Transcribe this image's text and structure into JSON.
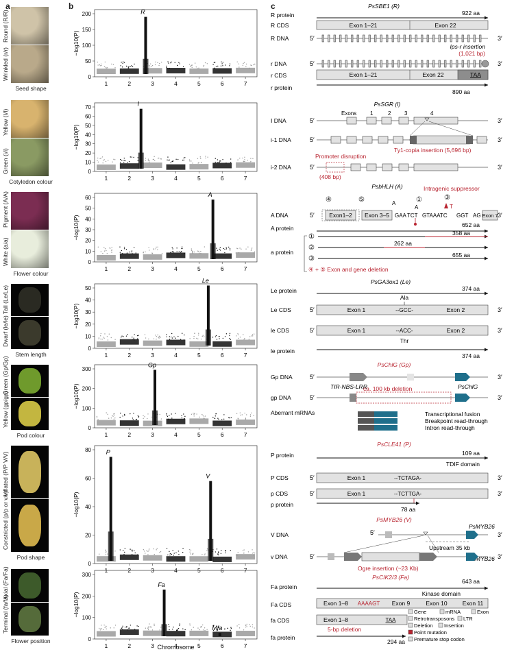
{
  "panels": {
    "a": "a",
    "b": "b",
    "c": "c"
  },
  "traits": [
    {
      "trait": "Seed shape",
      "top_label": "Round (R/R)",
      "bottom_label": "Wrinkled (r/r)",
      "colors": [
        "#cfc3a8",
        "#b9a98a"
      ]
    },
    {
      "trait": "Cotyledon colour",
      "top_label": "Yellow (I/I)",
      "bottom_label": "Green (i/i)",
      "colors": [
        "#d8b36e",
        "#8a9a63"
      ]
    },
    {
      "trait": "Flower colour",
      "top_label": "Pigment (A/A)",
      "bottom_label": "White (a/a)",
      "colors": [
        "#7b2d52",
        "#e8eddc"
      ]
    },
    {
      "trait": "Stem length",
      "top_label": "Tall (Le/Le)",
      "bottom_label": "Dwarf (le/le)",
      "colors": [
        "#2a2a22",
        "#3b3a2c"
      ]
    },
    {
      "trait": "Pod colour",
      "top_label": "Green (Gp/Gp)",
      "bottom_label": "Yellow (gp/gp)",
      "colors": [
        "#6f9a2c",
        "#c3b640"
      ]
    },
    {
      "trait": "Pod shape",
      "top_label": "Inflated (P/P V/V)",
      "bottom_label": "Constricted (p/p or v/v)",
      "colors": [
        "#c8b25a",
        "#c9a848"
      ]
    },
    {
      "trait": "Flower position",
      "top_label": "Axial (Fa/Fa)",
      "bottom_label": "Terminal (fa/fa)",
      "colors": [
        "#3d5a2a",
        "#556b3a"
      ]
    }
  ],
  "manhattan": {
    "ylabel": "−log10(P)",
    "xlabel": "Chromosome",
    "chromosomes": [
      "1",
      "2",
      "3",
      "4",
      "5",
      "6",
      "7"
    ],
    "plots": [
      {
        "ymax": 200,
        "yticks": [
          "0",
          "50",
          "100",
          "150",
          "200"
        ],
        "peaks": [
          {
            "label": "R",
            "chr": 2.7,
            "value": 190
          }
        ]
      },
      {
        "ymax": 70,
        "yticks": [
          "0",
          "10",
          "20",
          "30",
          "40",
          "50",
          "60",
          "70"
        ],
        "peaks": [
          {
            "label": "I",
            "chr": 2.5,
            "value": 68
          }
        ]
      },
      {
        "ymax": 60,
        "yticks": [
          "0",
          "10",
          "20",
          "30",
          "40",
          "50",
          "60"
        ],
        "peaks": [
          {
            "label": "A",
            "chr": 5.6,
            "value": 58
          }
        ]
      },
      {
        "ymax": 50,
        "yticks": [
          "0",
          "10",
          "20",
          "30",
          "40",
          "50"
        ],
        "peaks": [
          {
            "label": "Le",
            "chr": 5.4,
            "value": 52
          }
        ]
      },
      {
        "ymax": 300,
        "yticks": [
          "0",
          "100",
          "200",
          "300"
        ],
        "peaks": [
          {
            "label": "Gp",
            "chr": 3.1,
            "value": 295
          }
        ]
      },
      {
        "ymax": 80,
        "yticks": [
          "0",
          "20",
          "40",
          "60",
          "80"
        ],
        "peaks": [
          {
            "label": "P",
            "chr": 1.2,
            "value": 75
          },
          {
            "label": "V",
            "chr": 5.5,
            "value": 58
          }
        ]
      },
      {
        "ymax": 300,
        "yticks": [
          "0",
          "100",
          "200",
          "300"
        ],
        "peaks": [
          {
            "label": "Fa",
            "chr": 3.5,
            "value": 230
          },
          {
            "label": "Mfa",
            "chr": 5.9,
            "value": 28
          }
        ]
      }
    ]
  },
  "genes": {
    "r": {
      "title": "PsSBE1 (R)",
      "protein_aa": "922 aa",
      "rows": [
        "R protein",
        "R CDS",
        "R DNA",
        "r DNA",
        "r CDS",
        "r protein"
      ],
      "exon_a": "Exon 1–21",
      "exon_b": "Exon 22",
      "insertion": "Ips-r insertion",
      "insertion_bp": "(1,021 bp)",
      "stop": "TAA",
      "r_protein_aa": "890 aa"
    },
    "i": {
      "title": "PsSGR (I)",
      "rows": [
        "I DNA",
        "i-1 DNA",
        "i-2 DNA"
      ],
      "exons_label": "Exons",
      "exon_nums": [
        "1",
        "2",
        "3",
        "4"
      ],
      "ty1": "Ty1-copia insertion (5,696 bp)",
      "promoter": "Promoter disruption",
      "promoter_bp": "(408 bp)"
    },
    "a": {
      "title": "PsbHLH (A)",
      "suppressor": "Intragenic suppressor",
      "rows": [
        "A DNA",
        "A protein",
        "a protein"
      ],
      "exon_a": "Exon1–2",
      "exon_b": "Exon 3–5",
      "exon_c": "Exon 7",
      "seq1": "GAA",
      "seq2": "TCT",
      "seq3": "GTAAATC",
      "seq4": "GGT",
      "seq5": "AG",
      "snp": "T",
      "protein_aa": "652 aa",
      "a1_aa": "358 aa",
      "a2_aa": "262 aa",
      "a3_aa": "655 aa",
      "deletion": "④ + ⑤ Exon and gene deletion",
      "circles": [
        "①",
        "②",
        "③",
        "④",
        "⑤"
      ],
      "snpA": "A"
    },
    "le": {
      "title": "PsGA3ox1 (Le)",
      "rows": [
        "Le protein",
        "Le CDS",
        "le CDS",
        "le protein"
      ],
      "protein_aa": "374 aa",
      "ala": "Ala",
      "thr": "Thr",
      "exon_a": "Exon 1",
      "exon_b": "Exon 2",
      "codon_le": "--GCC-",
      "codon_lele": "--ACC-",
      "le_protein_aa": "374 aa"
    },
    "gp": {
      "title": "PsChlG (Gp)",
      "rows": [
        "Gp DNA",
        "gp DNA",
        "Aberrant mRNAs"
      ],
      "tir": "TIR-NBS-LRR",
      "chlg": "PsChlG",
      "deletion": "ca. 100 kb deletion",
      "m1": "Transcriptional fusion",
      "m2": "Breakpoint read-through",
      "m3": "Intron read-through"
    },
    "p": {
      "title": "PsCLE41 (P)",
      "rows": [
        "P protein",
        "P CDS",
        "p CDS",
        "p protein"
      ],
      "protein_aa": "109 aa",
      "tdif": "TDIF domain",
      "exon": "Exon 1",
      "seq_p": "--TCTAGA-",
      "seq_pp": "--TCTTGA-",
      "p_protein_aa": "78 aa"
    },
    "v": {
      "title": "PsMYB26 (V)",
      "rows": [
        "V DNA",
        "v DNA"
      ],
      "gene": "PsMYB26",
      "upstream": "Upstream 35 kb",
      "ogre": "Ogre insertion (~23 Kb)"
    },
    "fa": {
      "title": "PsCIK2/3 (Fa)",
      "rows": [
        "Fa protein",
        "Fa CDS",
        "fa CDS",
        "fa protein"
      ],
      "protein_aa": "643 aa",
      "kinase": "Kinase domain",
      "exon_a": "Exon 1–8",
      "exon_b": "Exon 9",
      "exon_c": "Exon 10",
      "exon_d": "Exon 11",
      "seq_fa": "AAAAGT",
      "del": "5-bp deletion",
      "fa_protein_aa": "294 aa",
      "taa": "TAA"
    }
  },
  "legend": [
    "Gene",
    "mRNA",
    "Exon",
    "Retrotransposons",
    "LTR",
    "Deletion",
    "Insertion",
    "Point mutation",
    "Premature stop codon"
  ],
  "primes": {
    "five": "5′",
    "three": "3′"
  },
  "colors": {
    "red": "#b8232f",
    "exon": "#e2e2e2",
    "blue": "#1f6f8b",
    "dark": "#111111",
    "grey": "#9a9a9a"
  }
}
